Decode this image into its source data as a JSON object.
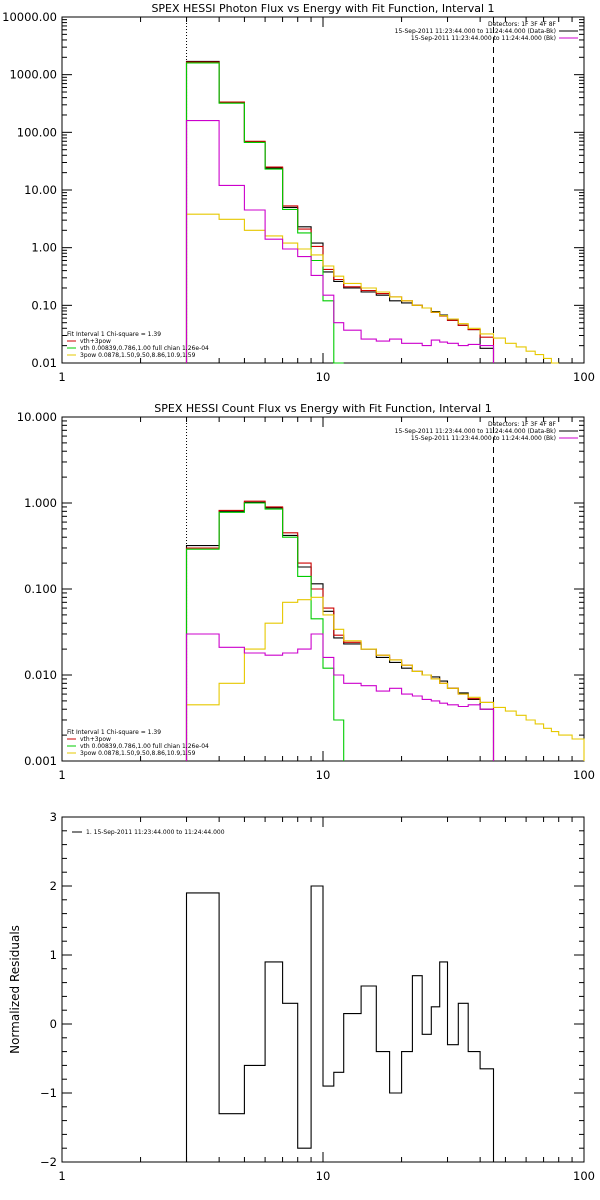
{
  "panels": [
    {
      "id": "photon",
      "title": "SPEX HESSI Photon Flux vs Energy with Fit Function, Interval 1",
      "ylabel": "",
      "yscale": "log",
      "xscale": "log",
      "xlim": [
        1,
        100
      ],
      "ylim": [
        0.01,
        10000
      ],
      "yticks": [
        0.01,
        0.1,
        1,
        10,
        100,
        1000,
        10000
      ],
      "ytick_labels": [
        "0.01",
        "0.10",
        "1.00",
        "10.00",
        "100.00",
        "1000.00",
        "10000.00"
      ],
      "xticks": [
        1,
        10,
        100
      ],
      "xtick_labels": [
        "1",
        "10",
        "100"
      ],
      "vlines": [
        {
          "x": 3,
          "style": "dotted"
        },
        {
          "x": 45,
          "style": "dashed"
        }
      ],
      "legend_topright": [
        "Detectors: 1F 3F 4F 8F",
        "15-Sep-2011 11:23:44.000 to 11:24:44.000 (Data-Bk)",
        "15-Sep-2011 11:23:44.000 to 11:24:44.000 (Bk)"
      ],
      "legend_topright_colors": [
        "",
        "#000000",
        "#cc00cc"
      ],
      "legend_bottomleft": [
        "Fit Interval 1   Chi-square = 1.39",
        "vth+3pow",
        "vth 0.00839,0.786,1.00  full chian 1.26e-04",
        "3pow 0.0878,1.50,9.50,8.86,10.9,1.59"
      ],
      "legend_bottomleft_colors": [
        "",
        "#cc0000",
        "#00cc00",
        "#e6c800"
      ]
    },
    {
      "id": "count",
      "title": "SPEX HESSI Count Flux vs Energy with Fit Function, Interval 1",
      "ylabel": "",
      "yscale": "log",
      "xscale": "log",
      "xlim": [
        1,
        100
      ],
      "ylim": [
        0.001,
        10
      ],
      "yticks": [
        0.001,
        0.01,
        0.1,
        1,
        10
      ],
      "ytick_labels": [
        "0.001",
        "0.010",
        "0.100",
        "1.000",
        "10.000"
      ],
      "xticks": [
        1,
        10,
        100
      ],
      "xtick_labels": [
        "1",
        "10",
        "100"
      ],
      "vlines": [
        {
          "x": 3,
          "style": "dotted"
        },
        {
          "x": 45,
          "style": "dashed"
        }
      ],
      "legend_topright": [
        "Detectors: 1F 3F 4F 8F",
        "15-Sep-2011 11:23:44.000 to 11:24:44.000 (Data-Bk)",
        "15-Sep-2011 11:23:44.000 to 11:24:44.000 (Bk)"
      ],
      "legend_topright_colors": [
        "",
        "#000000",
        "#cc00cc"
      ],
      "legend_bottomleft": [
        "Fit Interval 1   Chi-square = 1.39",
        "vth+3pow",
        "vth 0.00839,0.786,1.00  full chian 1.26e-04",
        "3pow 0.0878,1.50,9.50,8.86,10.9,1.59"
      ],
      "legend_bottomleft_colors": [
        "",
        "#cc0000",
        "#00cc00",
        "#e6c800"
      ]
    },
    {
      "id": "residuals",
      "title": "",
      "ylabel": "Normalized Residuals",
      "yscale": "linear",
      "xscale": "log",
      "xlim": [
        1,
        100
      ],
      "ylim": [
        -2,
        3
      ],
      "yticks": [
        -2,
        -1,
        0,
        1,
        2,
        3
      ],
      "ytick_labels": [
        "−2",
        "−1",
        "0",
        "1",
        "2",
        "3"
      ],
      "xticks": [
        1,
        10,
        100
      ],
      "xtick_labels": [
        "1",
        "10",
        "100"
      ],
      "vlines": [],
      "legend_topleft": [
        "1. 15-Sep-2011 11:23:44.000 to 11:24:44.000"
      ],
      "legend_topleft_colors": [
        "#000000"
      ]
    }
  ],
  "chart_data": [
    {
      "type": "line",
      "title": "SPEX HESSI Photon Flux vs Energy with Fit Function, Interval 1",
      "xscale": "log",
      "yscale": "log",
      "xlim": [
        1,
        100
      ],
      "ylim": [
        0.01,
        10000
      ],
      "bin_edges": [
        3,
        4,
        5,
        6,
        7,
        8,
        9,
        10,
        11,
        12,
        14,
        16,
        18,
        20,
        22,
        24,
        26,
        28,
        30,
        33,
        36,
        40,
        45
      ],
      "series": [
        {
          "name": "15-Sep-2011 11:23:44.000 to 11:24:44.000 (Data-Bk)",
          "color": "#000000",
          "edges": [
            3,
            4,
            5,
            6,
            7,
            8,
            9,
            10,
            11,
            12,
            14,
            16,
            18,
            20,
            22,
            24,
            26,
            28,
            30,
            33,
            36,
            40,
            45
          ],
          "values": [
            1700,
            330,
            68,
            24,
            5,
            2.3,
            1.2,
            0.38,
            0.26,
            0.2,
            0.17,
            0.15,
            0.12,
            0.11,
            0.1,
            0.09,
            0.078,
            0.068,
            0.055,
            0.045,
            0.038,
            0.018
          ]
        },
        {
          "name": "vth+3pow",
          "color": "#cc0000",
          "edges": [
            3,
            4,
            5,
            6,
            7,
            8,
            9,
            10,
            11,
            12,
            14,
            16,
            18,
            20,
            22,
            24,
            26,
            28,
            30,
            33,
            36,
            40,
            45
          ],
          "values": [
            1650,
            335,
            70,
            25,
            5.3,
            2.1,
            1.05,
            0.42,
            0.28,
            0.21,
            0.18,
            0.16,
            0.14,
            0.12,
            0.1,
            0.09,
            0.075,
            0.065,
            0.055,
            0.045,
            0.038,
            0.028
          ]
        },
        {
          "name": "vth",
          "color": "#00cc00",
          "edges": [
            3,
            4,
            5,
            6,
            7,
            8,
            9,
            10,
            11,
            12
          ],
          "values": [
            1600,
            320,
            67,
            23,
            4.6,
            1.8,
            0.6,
            0.12,
            0.01
          ]
        },
        {
          "name": "3pow",
          "color": "#e6c800",
          "edges": [
            3,
            4,
            5,
            6,
            7,
            8,
            9,
            10,
            11,
            12,
            14,
            16,
            18,
            20,
            22,
            24,
            26,
            28,
            30,
            33,
            36,
            40,
            45,
            50,
            55,
            60,
            65,
            70,
            75,
            80
          ],
          "values": [
            3.8,
            3.1,
            2.0,
            1.6,
            1.2,
            0.95,
            0.75,
            0.48,
            0.32,
            0.24,
            0.2,
            0.17,
            0.14,
            0.12,
            0.1,
            0.09,
            0.076,
            0.066,
            0.058,
            0.048,
            0.04,
            0.032,
            0.027,
            0.022,
            0.019,
            0.016,
            0.014,
            0.012,
            0.01
          ]
        },
        {
          "name": "15-Sep-2011 11:23:44.000 to 11:24:44.000 (Bk)",
          "color": "#cc00cc",
          "edges": [
            3,
            4,
            5,
            6,
            7,
            8,
            9,
            10,
            11,
            12,
            14,
            16,
            18,
            20,
            22,
            24,
            26,
            28,
            30,
            33,
            36,
            40,
            45
          ],
          "values": [
            160,
            12,
            4.5,
            1.4,
            0.95,
            0.7,
            0.33,
            0.15,
            0.05,
            0.037,
            0.026,
            0.024,
            0.026,
            0.022,
            0.022,
            0.02,
            0.025,
            0.023,
            0.022,
            0.02,
            0.021,
            0.02
          ]
        }
      ]
    },
    {
      "type": "line",
      "title": "SPEX HESSI Count Flux vs Energy with Fit Function, Interval 1",
      "xscale": "log",
      "yscale": "log",
      "xlim": [
        1,
        100
      ],
      "ylim": [
        0.001,
        10
      ],
      "series": [
        {
          "name": "15-Sep-2011 11:23:44.000 to 11:24:44.000 (Data-Bk)",
          "color": "#000000",
          "edges": [
            3,
            4,
            5,
            6,
            7,
            8,
            9,
            10,
            11,
            12,
            14,
            16,
            18,
            20,
            22,
            24,
            26,
            28,
            30,
            33,
            36,
            40,
            45
          ],
          "values": [
            0.32,
            0.8,
            1.02,
            0.88,
            0.42,
            0.18,
            0.115,
            0.055,
            0.027,
            0.023,
            0.02,
            0.016,
            0.014,
            0.012,
            0.011,
            0.01,
            0.0095,
            0.0085,
            0.007,
            0.0062,
            0.0052,
            0.004
          ]
        },
        {
          "name": "vth+3pow",
          "color": "#cc0000",
          "edges": [
            3,
            4,
            5,
            6,
            7,
            8,
            9,
            10,
            11,
            12,
            14,
            16,
            18,
            20,
            22,
            24,
            26,
            28,
            30,
            33,
            36,
            40,
            45
          ],
          "values": [
            0.3,
            0.82,
            1.05,
            0.9,
            0.45,
            0.2,
            0.1,
            0.06,
            0.029,
            0.024,
            0.02,
            0.017,
            0.015,
            0.013,
            0.011,
            0.01,
            0.009,
            0.008,
            0.007,
            0.006,
            0.0053,
            0.0048
          ]
        },
        {
          "name": "vth",
          "color": "#00cc00",
          "edges": [
            3,
            4,
            5,
            6,
            7,
            8,
            9,
            10,
            11,
            12
          ],
          "values": [
            0.29,
            0.78,
            1.0,
            0.85,
            0.4,
            0.14,
            0.045,
            0.012,
            0.003,
            0.001
          ]
        },
        {
          "name": "3pow",
          "color": "#e6c800",
          "edges": [
            3,
            4,
            5,
            6,
            7,
            8,
            9,
            10,
            11,
            12,
            14,
            16,
            18,
            20,
            22,
            24,
            26,
            28,
            30,
            33,
            36,
            40,
            45,
            50,
            55,
            60,
            65,
            70,
            75,
            80,
            90,
            100
          ],
          "values": [
            0.0045,
            0.008,
            0.02,
            0.04,
            0.07,
            0.075,
            0.08,
            0.05,
            0.034,
            0.025,
            0.02,
            0.017,
            0.015,
            0.013,
            0.011,
            0.01,
            0.009,
            0.008,
            0.007,
            0.006,
            0.0055,
            0.0048,
            0.0042,
            0.0038,
            0.0034,
            0.003,
            0.0027,
            0.0024,
            0.0022,
            0.002,
            0.0018
          ]
        },
        {
          "name": "15-Sep-2011 11:23:44.000 to 11:24:44.000 (Bk)",
          "color": "#cc00cc",
          "edges": [
            3,
            4,
            5,
            6,
            7,
            8,
            9,
            10,
            11,
            12,
            14,
            16,
            18,
            20,
            22,
            24,
            26,
            28,
            30,
            33,
            36,
            40,
            45
          ],
          "values": [
            0.03,
            0.021,
            0.018,
            0.017,
            0.018,
            0.02,
            0.03,
            0.016,
            0.01,
            0.008,
            0.0075,
            0.0065,
            0.007,
            0.006,
            0.0057,
            0.0052,
            0.005,
            0.0047,
            0.0045,
            0.0043,
            0.0045,
            0.004
          ]
        }
      ]
    },
    {
      "type": "line",
      "title": "",
      "ylabel": "Normalized Residuals",
      "xscale": "log",
      "yscale": "linear",
      "xlim": [
        1,
        100
      ],
      "ylim": [
        -2,
        3
      ],
      "series": [
        {
          "name": "1. 15-Sep-2011 11:23:44.000 to 11:24:44.000",
          "color": "#000000",
          "edges": [
            3,
            4,
            5,
            6,
            7,
            8,
            9,
            10,
            11,
            12,
            14,
            16,
            18,
            20,
            22,
            24,
            26,
            28,
            30,
            33,
            36,
            40,
            45
          ],
          "values": [
            1.9,
            -1.3,
            -0.6,
            0.9,
            0.3,
            -1.8,
            2.0,
            -0.9,
            -0.7,
            0.15,
            0.55,
            -0.4,
            -1.0,
            -0.4,
            0.7,
            -0.15,
            0.25,
            0.9,
            -0.3,
            0.3,
            -0.4,
            -0.65
          ]
        }
      ]
    }
  ]
}
